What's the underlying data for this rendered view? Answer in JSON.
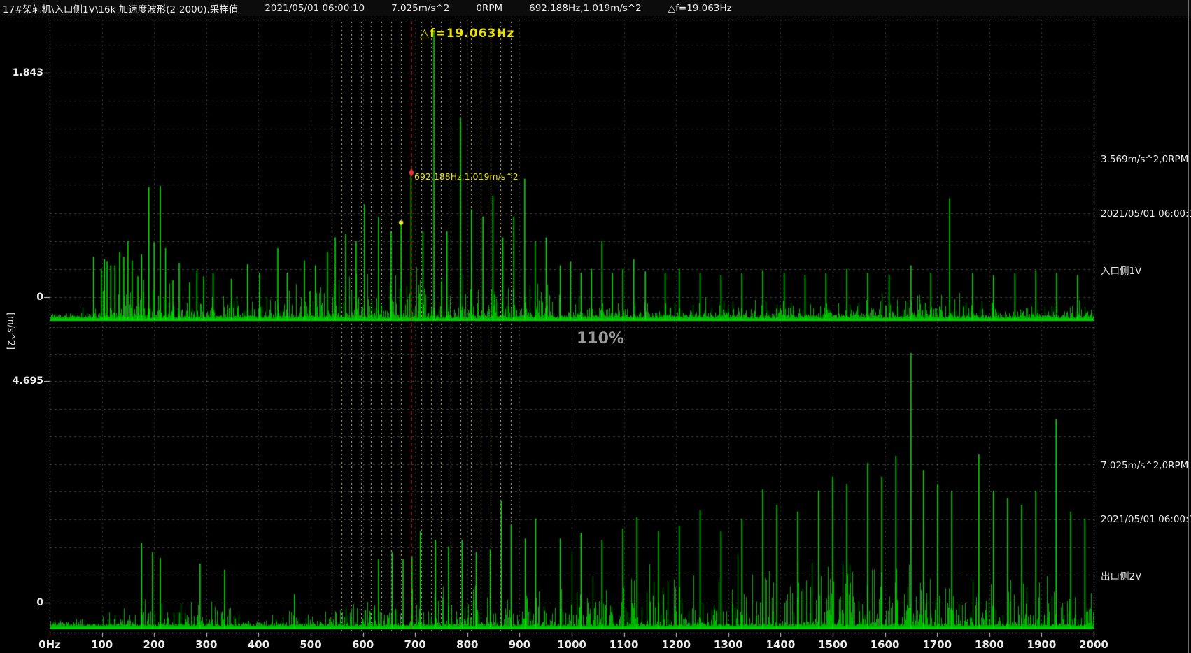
{
  "header": {
    "title": "17#架轧机\\入口侧1V\\16k 加速度波形(2-2000).采样值",
    "datetime": "2021/05/01 06:00:10",
    "peak_value": "7.025m/s^2",
    "rpm": "0RPM",
    "marker_readout": "692.188Hz,1.019m/s^2",
    "delta_f": "△f=19.063Hz"
  },
  "overlay": {
    "zoom_level": "110%"
  },
  "colors": {
    "background": "#000000",
    "trace_green": "#00e000",
    "marker_red": "#c83232",
    "annotation_yellow": "#e8e200",
    "grid_gray": "#bdbdbd",
    "text_white": "#ececec",
    "zoom_gray": "#9a9a9a"
  },
  "x_axis": {
    "unit": "Hz",
    "min": 0,
    "max": 2000,
    "ticks": [
      "0Hz",
      "100",
      "200",
      "300",
      "400",
      "500",
      "600",
      "700",
      "800",
      "900",
      "1000",
      "1100",
      "1200",
      "1300",
      "1400",
      "1500",
      "1600",
      "1700",
      "1800",
      "1900",
      "2000"
    ]
  },
  "chart_data": [
    {
      "type": "line",
      "name": "入口侧1V acceleration spectrum",
      "ylabel": "[m/s^2]",
      "xlim": [
        0,
        2000
      ],
      "grid": true,
      "y_ticks": [
        {
          "label": "1.843",
          "value": 1.843
        },
        {
          "label": "0",
          "value": 0
        }
      ],
      "right_labels": [
        "3.569m/s^2,0RPM",
        "2021/05/01 06:00:10",
        "入口侧1V"
      ],
      "marker": {
        "freq": 692.188,
        "amp": 1.019,
        "label": "692.188Hz,1.019m/s^2"
      },
      "delta_f": {
        "hz": 19.063,
        "label": "△f=19.063Hz",
        "sidebands_left": 8,
        "sidebands_right": 10
      },
      "dot_marker": {
        "freq": 673.125,
        "amp": 0.61
      },
      "peaks": [
        [
          84,
          0.33
        ],
        [
          99,
          0.23
        ],
        [
          105,
          0.31
        ],
        [
          110,
          0.29
        ],
        [
          117,
          0.26
        ],
        [
          125,
          0.26
        ],
        [
          134,
          0.37
        ],
        [
          142,
          0.33
        ],
        [
          150,
          0.46
        ],
        [
          158,
          0.3
        ],
        [
          169,
          0.17
        ],
        [
          176,
          0.35
        ],
        [
          190,
          0.9
        ],
        [
          200,
          0.45
        ],
        [
          212,
          0.91
        ],
        [
          222,
          0.4
        ],
        [
          236,
          0.14
        ],
        [
          248,
          0.28
        ],
        [
          268,
          0.12
        ],
        [
          282,
          0.22
        ],
        [
          295,
          0.17
        ],
        [
          313,
          0.2
        ],
        [
          348,
          0.15
        ],
        [
          379,
          0.27
        ],
        [
          402,
          0.2
        ],
        [
          437,
          0.4
        ],
        [
          455,
          0.2
        ],
        [
          488,
          0.3
        ],
        [
          509,
          0.26
        ],
        [
          532,
          0.37
        ],
        [
          547,
          0.49
        ],
        [
          567,
          0.52
        ],
        [
          587,
          0.46
        ],
        [
          603,
          0.76
        ],
        [
          630,
          0.66
        ],
        [
          654,
          0.54
        ],
        [
          673.125,
          0.61
        ],
        [
          692.188,
          1.019
        ],
        [
          715,
          0.54
        ],
        [
          736,
          2.17
        ],
        [
          761,
          0.54
        ],
        [
          787,
          1.47
        ],
        [
          808,
          0.72
        ],
        [
          830,
          0.66
        ],
        [
          849,
          0.83
        ],
        [
          868,
          0.49
        ],
        [
          889,
          0.66
        ],
        [
          910,
          0.97
        ],
        [
          930,
          0.46
        ],
        [
          951,
          0.49
        ],
        [
          978,
          0.26
        ],
        [
          998,
          0.29
        ],
        [
          1018,
          0.2
        ],
        [
          1038,
          0.23
        ],
        [
          1058,
          0.46
        ],
        [
          1078,
          0.2
        ],
        [
          1098,
          0.23
        ],
        [
          1119,
          0.31
        ],
        [
          1141,
          0.21
        ],
        [
          1179,
          0.2
        ],
        [
          1206,
          0.23
        ],
        [
          1246,
          0.2
        ],
        [
          1286,
          0.18
        ],
        [
          1326,
          0.2
        ],
        [
          1366,
          0.22
        ],
        [
          1407,
          0.2
        ],
        [
          1447,
          0.18
        ],
        [
          1487,
          0.2
        ],
        [
          1527,
          0.23
        ],
        [
          1567,
          0.2
        ],
        [
          1608,
          0.18
        ],
        [
          1650,
          0.26
        ],
        [
          1688,
          0.2
        ],
        [
          1724,
          0.81
        ],
        [
          1768,
          0.2
        ],
        [
          1808,
          0.18
        ],
        [
          1849,
          0.2
        ],
        [
          1889,
          0.22
        ],
        [
          1929,
          0.2
        ],
        [
          1969,
          0.18
        ]
      ]
    },
    {
      "type": "line",
      "name": "出口侧2V acceleration spectrum",
      "ylabel": "[m/s^2]",
      "xlim": [
        0,
        2000
      ],
      "grid": true,
      "y_ticks": [
        {
          "label": "4.695",
          "value": 4.695
        },
        {
          "label": "0",
          "value": 0
        }
      ],
      "right_labels": [
        "7.025m/s^2,0RPM",
        "2021/05/01 06:00:10",
        "出口侧2V"
      ],
      "peaks": [
        [
          176,
          1.27
        ],
        [
          197,
          1.07
        ],
        [
          212,
          0.95
        ],
        [
          288,
          0.83
        ],
        [
          335,
          0.7
        ],
        [
          469,
          0.18
        ],
        [
          630,
          0.92
        ],
        [
          656,
          1.07
        ],
        [
          677,
          0.92
        ],
        [
          694,
          0.99
        ],
        [
          710,
          1.51
        ],
        [
          739,
          1.33
        ],
        [
          764,
          1.19
        ],
        [
          790,
          1.33
        ],
        [
          817,
          1.07
        ],
        [
          844,
          1.13
        ],
        [
          865,
          2.16
        ],
        [
          884,
          1.66
        ],
        [
          911,
          1.36
        ],
        [
          931,
          1.78
        ],
        [
          978,
          1.36
        ],
        [
          1018,
          1.48
        ],
        [
          1058,
          1.33
        ],
        [
          1098,
          1.57
        ],
        [
          1125,
          1.81
        ],
        [
          1166,
          1.51
        ],
        [
          1206,
          1.63
        ],
        [
          1246,
          1.96
        ],
        [
          1286,
          1.51
        ],
        [
          1326,
          1.78
        ],
        [
          1366,
          2.4
        ],
        [
          1393,
          2.07
        ],
        [
          1433,
          1.93
        ],
        [
          1473,
          2.37
        ],
        [
          1500,
          2.67
        ],
        [
          1527,
          2.52
        ],
        [
          1567,
          2.96
        ],
        [
          1594,
          2.67
        ],
        [
          1621,
          3.11
        ],
        [
          1650,
          5.29
        ],
        [
          1674,
          2.81
        ],
        [
          1701,
          2.52
        ],
        [
          1728,
          2.37
        ],
        [
          1780,
          3.14
        ],
        [
          1808,
          2.37
        ],
        [
          1835,
          2.22
        ],
        [
          1862,
          2.07
        ],
        [
          1889,
          2.37
        ],
        [
          1928,
          3.88
        ],
        [
          1956,
          1.93
        ],
        [
          1983,
          1.78
        ]
      ]
    }
  ]
}
